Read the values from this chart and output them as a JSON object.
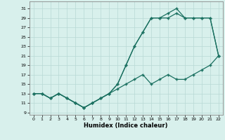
{
  "xlabel": "Humidex (Indice chaleur)",
  "bg_color": "#d8f0ec",
  "grid_color": "#b8d8d4",
  "line_color": "#1a7060",
  "xlim": [
    -0.5,
    22.5
  ],
  "ylim": [
    8.5,
    32.5
  ],
  "xticks": [
    0,
    1,
    2,
    3,
    4,
    5,
    6,
    7,
    8,
    9,
    10,
    11,
    12,
    13,
    14,
    15,
    16,
    17,
    18,
    19,
    20,
    21,
    22
  ],
  "yticks": [
    9,
    11,
    13,
    15,
    17,
    19,
    21,
    23,
    25,
    27,
    29,
    31
  ],
  "line1_x": [
    0,
    1,
    2,
    3,
    4,
    5,
    6,
    7,
    8,
    9,
    10,
    11,
    12,
    13,
    14,
    15,
    16,
    17,
    18,
    19,
    20,
    21,
    22
  ],
  "line1_y": [
    13,
    13,
    12,
    13,
    12,
    11,
    10,
    11,
    12,
    13,
    15,
    19,
    23,
    26,
    29,
    29,
    30,
    31,
    29,
    29,
    29,
    29,
    21
  ],
  "line2_x": [
    0,
    1,
    2,
    3,
    4,
    5,
    6,
    7,
    8,
    9,
    10,
    11,
    12,
    13,
    14,
    15,
    16,
    17,
    18,
    19,
    20,
    21,
    22
  ],
  "line2_y": [
    13,
    13,
    12,
    13,
    12,
    11,
    10,
    11,
    12,
    13,
    15,
    19,
    23,
    26,
    29,
    29,
    29,
    30,
    29,
    29,
    29,
    29,
    21
  ],
  "line3_x": [
    0,
    1,
    2,
    3,
    4,
    5,
    6,
    7,
    8,
    9,
    10,
    11,
    12,
    13,
    14,
    15,
    16,
    17,
    18,
    19,
    20,
    21,
    22
  ],
  "line3_y": [
    13,
    13,
    12,
    13,
    12,
    11,
    10,
    11,
    12,
    13,
    14,
    15,
    16,
    17,
    15,
    16,
    17,
    16,
    16,
    17,
    18,
    19,
    21
  ]
}
